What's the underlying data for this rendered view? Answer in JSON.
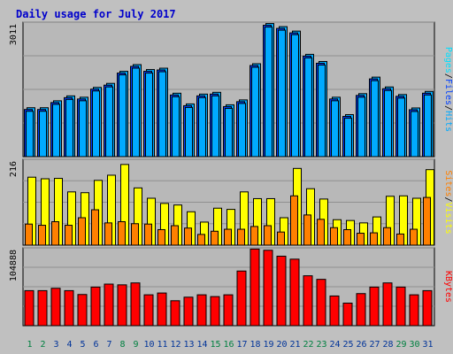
{
  "colors": {
    "background": "#c0c0c0",
    "plot_area": "#b8b8b8",
    "title": "#0000cc",
    "hits": "#00aaff",
    "files": "#0040ff",
    "pages": "#00e0ff",
    "visits": "#ffff00",
    "sites": "#ff8000",
    "kbytes": "#ff0000",
    "weekday_label": "#003399",
    "weekend_label": "#008040"
  },
  "chart_data": [
    {
      "type": "bar",
      "title": "Daily usage for July 2017",
      "panel": "hits_files",
      "ymax_label": "3011",
      "ylim": [
        0,
        3011
      ],
      "legend": {
        "parts": [
          "Pages",
          "/",
          "Files",
          "/",
          "Hits"
        ],
        "colors": [
          "#00e0ff",
          "#000000",
          "#0040ff",
          "#000000",
          "#00aaff"
        ]
      },
      "categories": [
        "1",
        "2",
        "3",
        "4",
        "5",
        "6",
        "7",
        "8",
        "9",
        "10",
        "11",
        "12",
        "13",
        "14",
        "15",
        "16",
        "17",
        "18",
        "19",
        "20",
        "21",
        "22",
        "23",
        "24",
        "25",
        "26",
        "27",
        "28",
        "29",
        "30",
        "31"
      ],
      "weekend": [
        1,
        2,
        8,
        9,
        15,
        16,
        22,
        23,
        29,
        30
      ],
      "series": [
        {
          "name": "Files",
          "values": [
            1095,
            1095,
            1250,
            1360,
            1330,
            1550,
            1640,
            1910,
            2060,
            1950,
            1980,
            1420,
            1180,
            1400,
            1440,
            1160,
            1270,
            2080,
            2980,
            2910,
            2810,
            2290,
            2130,
            1330,
            940,
            1410,
            1780,
            1560,
            1390,
            1090,
            1460
          ]
        },
        {
          "name": "Hits",
          "values": [
            1095,
            1095,
            1250,
            1360,
            1330,
            1550,
            1640,
            1910,
            2060,
            1950,
            1980,
            1420,
            1180,
            1400,
            1440,
            1160,
            1270,
            2080,
            2980,
            2910,
            2810,
            2290,
            2130,
            1330,
            940,
            1410,
            1780,
            1560,
            1390,
            1090,
            1460
          ]
        }
      ]
    },
    {
      "type": "bar",
      "panel": "visits_sites",
      "ymax_label": "216",
      "ylim": [
        0,
        216
      ],
      "legend": {
        "parts": [
          "Sites",
          "/",
          "Visits"
        ],
        "colors": [
          "#ff8000",
          "#000000",
          "#ffff00"
        ]
      },
      "series": [
        {
          "name": "Visits",
          "values": [
            171,
            167,
            168,
            134,
            132,
            163,
            176,
            203,
            144,
            118,
            105,
            101,
            84,
            58,
            93,
            90,
            134,
            117,
            117,
            69,
            193,
            142,
            116,
            64,
            62,
            56,
            71,
            123,
            124,
            118,
            190
          ]
        },
        {
          "name": "Sites",
          "values": [
            53,
            50,
            59,
            50,
            69,
            89,
            56,
            59,
            54,
            53,
            39,
            49,
            43,
            27,
            35,
            40,
            40,
            47,
            49,
            33,
            124,
            76,
            65,
            44,
            39,
            30,
            31,
            44,
            28,
            40,
            120
          ]
        }
      ]
    },
    {
      "type": "bar",
      "panel": "kbytes",
      "ymax_label": "104888",
      "ylim": [
        0,
        104888
      ],
      "legend": {
        "parts": [
          "KBytes"
        ],
        "colors": [
          "#ff0000"
        ]
      },
      "series": [
        {
          "name": "KBytes",
          "values": [
            47200,
            47200,
            50400,
            47200,
            42000,
            52000,
            56000,
            55000,
            57600,
            41600,
            44000,
            33600,
            38400,
            41600,
            39200,
            41600,
            73600,
            103200,
            101600,
            93600,
            89600,
            67200,
            62400,
            40000,
            30400,
            43200,
            52000,
            57600,
            52000,
            41600,
            47200
          ]
        }
      ]
    }
  ]
}
